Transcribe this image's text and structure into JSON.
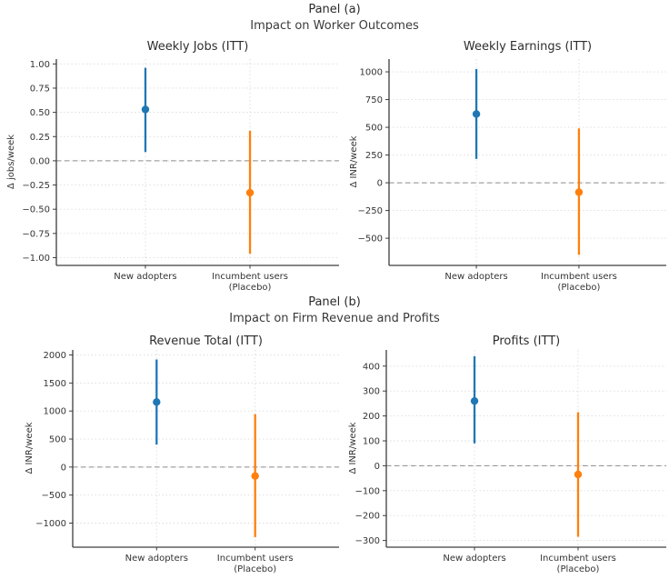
{
  "chart_data": {
    "type": "errorbar",
    "marker_shape": "circle",
    "grid": "dotted horizontal and vertical gridlines, dashed gray zero reference line",
    "panels": [
      {
        "label": "Panel (a)",
        "subtitle": "Impact on Worker Outcomes",
        "charts": [
          {
            "title": "Weekly Jobs (ITT)",
            "ylabel": "Δ jobs/week",
            "ylim": [
              -1.08,
              1.05
            ],
            "zero_line": 0,
            "yticks": {
              "values": [
                1.0,
                0.75,
                0.5,
                0.25,
                0.0,
                -0.25,
                -0.5,
                -0.75,
                -1.0
              ],
              "labels": [
                "1.00",
                "0.75",
                "0.50",
                "0.25",
                "0.00",
                "−0.25",
                "−0.50",
                "−0.75",
                "−1.00"
              ]
            },
            "categories": [
              [
                "New adopters"
              ],
              [
                "Incumbent users",
                "(Placebo)"
              ]
            ],
            "series": [
              {
                "name": "New adopters",
                "color": "#1f77b4",
                "estimate": 0.53,
                "ci_low": 0.09,
                "ci_high": 0.96
              },
              {
                "name": "Incumbent users (Placebo)",
                "color": "#ff7f0e",
                "estimate": -0.33,
                "ci_low": -0.96,
                "ci_high": 0.31
              }
            ]
          },
          {
            "title": "Weekly Earnings (ITT)",
            "ylabel": "Δ INR/week",
            "ylim": [
              -745,
              1115
            ],
            "zero_line": 0,
            "yticks": {
              "values": [
                1000,
                750,
                500,
                250,
                0,
                -250,
                -500
              ],
              "labels": [
                "1000",
                "750",
                "500",
                "250",
                "0",
                "−250",
                "−500"
              ]
            },
            "categories": [
              [
                "New adopters"
              ],
              [
                "Incumbent users",
                "(Placebo)"
              ]
            ],
            "series": [
              {
                "name": "New adopters",
                "color": "#1f77b4",
                "estimate": 620,
                "ci_low": 215,
                "ci_high": 1025
              },
              {
                "name": "Incumbent users (Placebo)",
                "color": "#ff7f0e",
                "estimate": -85,
                "ci_low": -650,
                "ci_high": 490
              }
            ]
          }
        ]
      },
      {
        "label": "Panel (b)",
        "subtitle": "Impact on Firm Revenue and Profits",
        "charts": [
          {
            "title": "Revenue Total (ITT)",
            "ylabel": "Δ INR/week",
            "ylim": [
              -1430,
              2090
            ],
            "zero_line": 0,
            "yticks": {
              "values": [
                2000,
                1500,
                1000,
                500,
                0,
                -500,
                -1000
              ],
              "labels": [
                "2000",
                "1500",
                "1000",
                "500",
                "0",
                "−500",
                "−1000"
              ]
            },
            "categories": [
              [
                "New adopters"
              ],
              [
                "Incumbent users",
                "(Placebo)"
              ]
            ],
            "series": [
              {
                "name": "New adopters",
                "color": "#1f77b4",
                "estimate": 1160,
                "ci_low": 400,
                "ci_high": 1920
              },
              {
                "name": "Incumbent users (Placebo)",
                "color": "#ff7f0e",
                "estimate": -160,
                "ci_low": -1250,
                "ci_high": 945
              }
            ]
          },
          {
            "title": "Profits (ITT)",
            "ylabel": "Δ INR/week",
            "ylim": [
              -327,
              465
            ],
            "zero_line": 0,
            "yticks": {
              "values": [
                400,
                300,
                200,
                100,
                0,
                -100,
                -200,
                -300
              ],
              "labels": [
                "400",
                "300",
                "200",
                "100",
                "0",
                "−100",
                "−200",
                "−300"
              ]
            },
            "categories": [
              [
                "New adopters"
              ],
              [
                "Incumbent users",
                "(Placebo)"
              ]
            ],
            "series": [
              {
                "name": "New adopters",
                "color": "#1f77b4",
                "estimate": 260,
                "ci_low": 90,
                "ci_high": 440
              },
              {
                "name": "Incumbent users (Placebo)",
                "color": "#ff7f0e",
                "estimate": -35,
                "ci_low": -285,
                "ci_high": 215
              }
            ]
          }
        ]
      }
    ]
  }
}
